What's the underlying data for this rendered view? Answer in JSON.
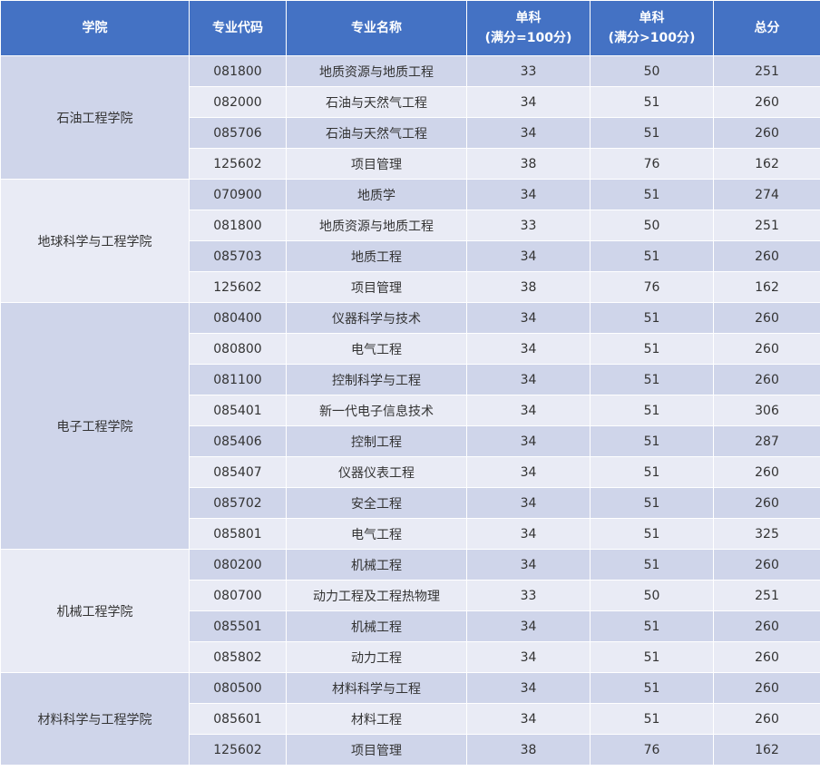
{
  "headers": {
    "college": "学院",
    "code": "专业代码",
    "name": "专业名称",
    "single1": {
      "line1": "单科",
      "line2": "(满分=100分)"
    },
    "single2": {
      "line1": "单科",
      "line2": "(满分>100分)"
    },
    "total": "总分"
  },
  "groups": [
    {
      "college": "石油工程学院",
      "rows": [
        {
          "code": "081800",
          "name": "地质资源与地质工程",
          "s1": "33",
          "s2": "50",
          "total": "251"
        },
        {
          "code": "082000",
          "name": "石油与天然气工程",
          "s1": "34",
          "s2": "51",
          "total": "260"
        },
        {
          "code": "085706",
          "name": "石油与天然气工程",
          "s1": "34",
          "s2": "51",
          "total": "260"
        },
        {
          "code": "125602",
          "name": "项目管理",
          "s1": "38",
          "s2": "76",
          "total": "162"
        }
      ]
    },
    {
      "college": "地球科学与工程学院",
      "rows": [
        {
          "code": "070900",
          "name": "地质学",
          "s1": "34",
          "s2": "51",
          "total": "274"
        },
        {
          "code": "081800",
          "name": "地质资源与地质工程",
          "s1": "33",
          "s2": "50",
          "total": "251"
        },
        {
          "code": "085703",
          "name": "地质工程",
          "s1": "34",
          "s2": "51",
          "total": "260"
        },
        {
          "code": "125602",
          "name": "项目管理",
          "s1": "38",
          "s2": "76",
          "total": "162"
        }
      ]
    },
    {
      "college": "电子工程学院",
      "rows": [
        {
          "code": "080400",
          "name": "仪器科学与技术",
          "s1": "34",
          "s2": "51",
          "total": "260"
        },
        {
          "code": "080800",
          "name": "电气工程",
          "s1": "34",
          "s2": "51",
          "total": "260"
        },
        {
          "code": "081100",
          "name": "控制科学与工程",
          "s1": "34",
          "s2": "51",
          "total": "260"
        },
        {
          "code": "085401",
          "name": "新一代电子信息技术",
          "s1": "34",
          "s2": "51",
          "total": "306"
        },
        {
          "code": "085406",
          "name": "控制工程",
          "s1": "34",
          "s2": "51",
          "total": "287"
        },
        {
          "code": "085407",
          "name": "仪器仪表工程",
          "s1": "34",
          "s2": "51",
          "total": "260"
        },
        {
          "code": "085702",
          "name": "安全工程",
          "s1": "34",
          "s2": "51",
          "total": "260"
        },
        {
          "code": "085801",
          "name": "电气工程",
          "s1": "34",
          "s2": "51",
          "total": "325"
        }
      ]
    },
    {
      "college": "机械工程学院",
      "rows": [
        {
          "code": "080200",
          "name": "机械工程",
          "s1": "34",
          "s2": "51",
          "total": "260"
        },
        {
          "code": "080700",
          "name": "动力工程及工程热物理",
          "s1": "33",
          "s2": "50",
          "total": "251"
        },
        {
          "code": "085501",
          "name": "机械工程",
          "s1": "34",
          "s2": "51",
          "total": "260"
        },
        {
          "code": "085802",
          "name": "动力工程",
          "s1": "34",
          "s2": "51",
          "total": "260"
        }
      ]
    },
    {
      "college": "材料科学与工程学院",
      "rows": [
        {
          "code": "080500",
          "name": "材料科学与工程",
          "s1": "34",
          "s2": "51",
          "total": "260"
        },
        {
          "code": "085601",
          "name": "材料工程",
          "s1": "34",
          "s2": "51",
          "total": "260"
        },
        {
          "code": "125602",
          "name": "项目管理",
          "s1": "38",
          "s2": "76",
          "total": "162"
        }
      ]
    }
  ],
  "colors": {
    "header_bg": "#4472c4",
    "row_shade": "#cfd5ea",
    "row_plain": "#e9ebf5"
  }
}
